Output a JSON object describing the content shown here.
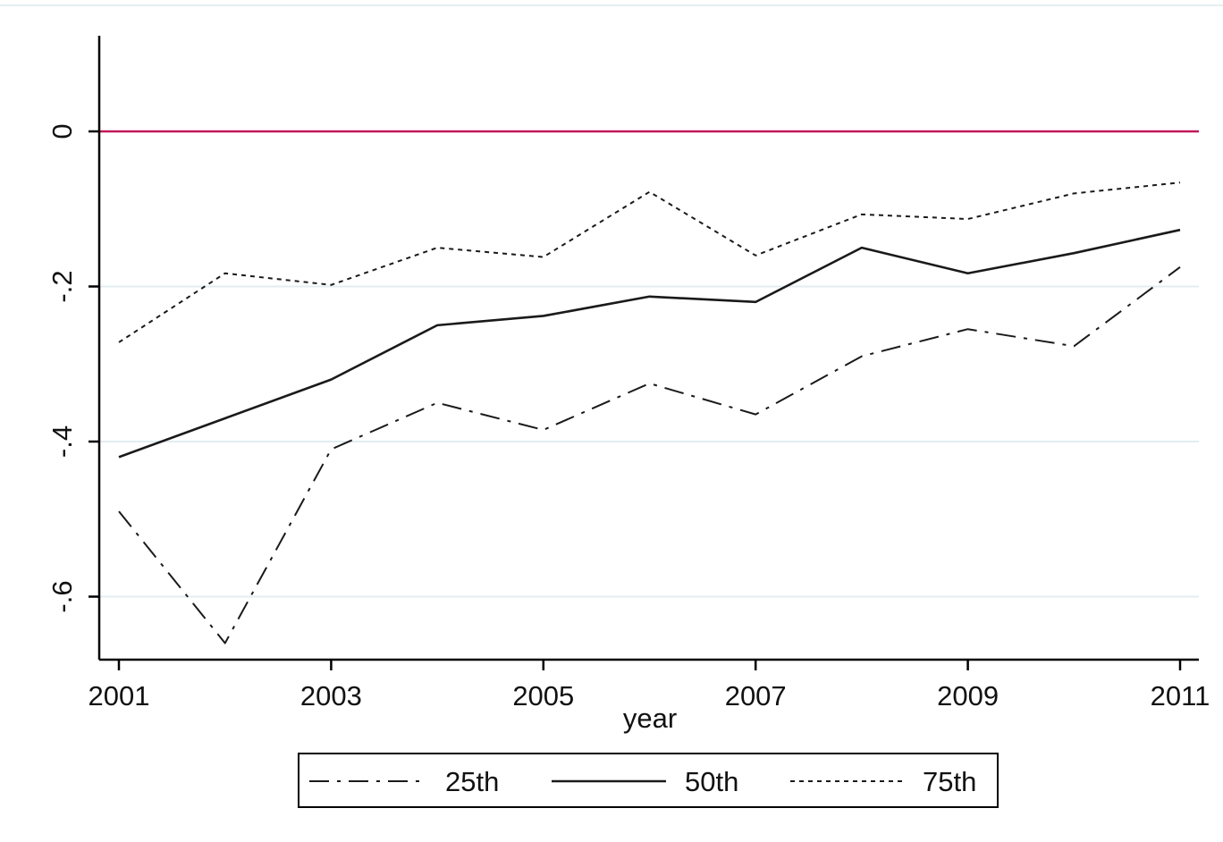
{
  "chart_data": {
    "type": "line",
    "title": "",
    "xlabel": "year",
    "ylabel": "",
    "x": [
      2001,
      2002,
      2003,
      2004,
      2005,
      2006,
      2007,
      2008,
      2009,
      2010,
      2011
    ],
    "xlim": [
      2001,
      2011
    ],
    "ylim": [
      -0.68,
      0.12
    ],
    "x_ticks": [
      2001,
      2003,
      2005,
      2007,
      2009,
      2011
    ],
    "x_tick_labels": [
      "2001",
      "2003",
      "2005",
      "2007",
      "2009",
      "2011"
    ],
    "y_ticks": [
      0,
      -0.2,
      -0.4,
      -0.6
    ],
    "y_tick_labels": [
      "0",
      "-.2",
      "-.4",
      "-.6"
    ],
    "grid": true,
    "legend_position": "bottom",
    "reference_line": {
      "y": 0,
      "color": "#c0185a"
    },
    "series": [
      {
        "name": "25th",
        "style": "dash-dot",
        "color": "#1a1a1a",
        "values": [
          -0.49,
          -0.66,
          -0.41,
          -0.35,
          -0.385,
          -0.325,
          -0.365,
          -0.29,
          -0.255,
          -0.277,
          -0.175
        ]
      },
      {
        "name": "50th",
        "style": "solid",
        "color": "#1a1a1a",
        "values": [
          -0.42,
          -0.37,
          -0.32,
          -0.25,
          -0.238,
          -0.213,
          -0.22,
          -0.15,
          -0.183,
          -0.157,
          -0.127
        ]
      },
      {
        "name": "75th",
        "style": "short-dash",
        "color": "#1a1a1a",
        "values": [
          -0.272,
          -0.183,
          -0.198,
          -0.15,
          -0.162,
          -0.078,
          -0.16,
          -0.107,
          -0.113,
          -0.08,
          -0.066
        ]
      }
    ]
  }
}
